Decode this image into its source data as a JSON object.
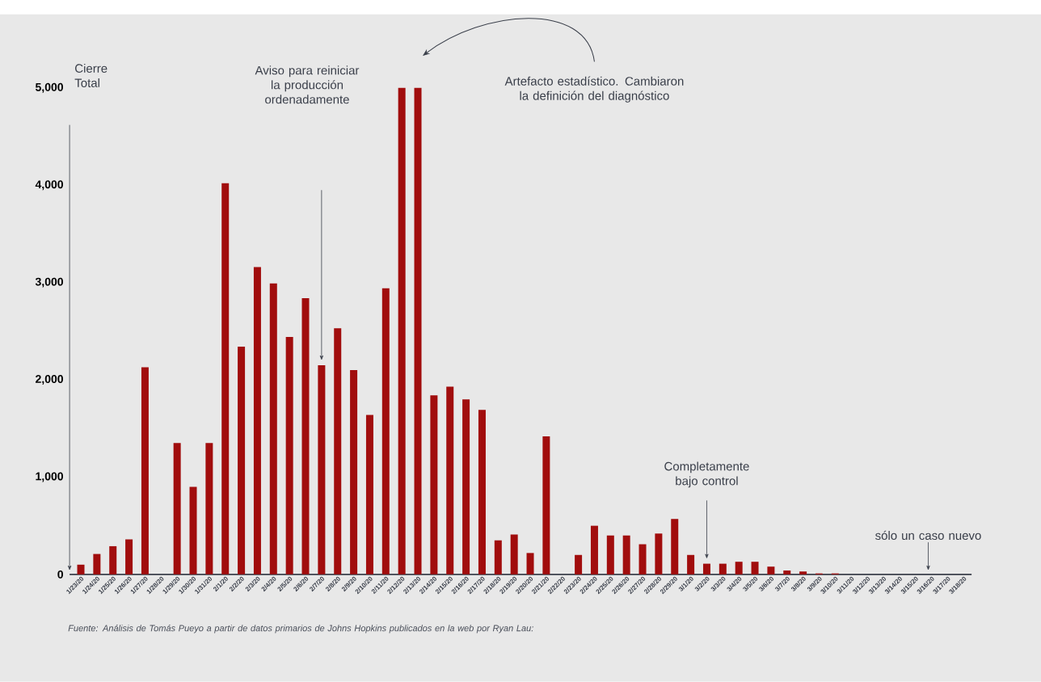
{
  "chart_data": {
    "type": "bar",
    "color": "#a10d0d",
    "categories": [
      "1/23/20",
      "1/24/20",
      "1/25/20",
      "1/26/20",
      "1/27/20",
      "1/28/20",
      "1/29/20",
      "1/30/20",
      "1/31/20",
      "2/1/20",
      "2/2/20",
      "2/3/20",
      "2/4/20",
      "2/5/20",
      "2/6/20",
      "2/7/20",
      "2/8/20",
      "2/9/20",
      "2/10/20",
      "2/11/20",
      "2/12/20",
      "2/13/20",
      "2/14/20",
      "2/15/20",
      "2/16/20",
      "2/17/20",
      "2/18/20",
      "2/19/20",
      "2/20/20",
      "2/21/20",
      "2/22/20",
      "2/23/20",
      "2/24/20",
      "2/25/20",
      "2/26/20",
      "2/27/20",
      "2/28/20",
      "2/29/20",
      "3/1/20",
      "3/2/20",
      "3/3/20",
      "3/4/20",
      "3/5/20",
      "3/6/20",
      "3/7/20",
      "3/8/20",
      "3/9/20",
      "3/10/20",
      "3/11/20",
      "3/12/20",
      "3/13/20",
      "3/14/20",
      "3/15/20",
      "3/16/20",
      "3/17/20",
      "3/18/20"
    ],
    "values": [
      100,
      210,
      290,
      360,
      2130,
      0,
      1350,
      900,
      1350,
      4020,
      2340,
      3160,
      2990,
      2440,
      2840,
      2150,
      2530,
      2100,
      1640,
      2940,
      5000,
      5000,
      1840,
      1930,
      1800,
      1690,
      350,
      410,
      220,
      1420,
      0,
      200,
      500,
      400,
      400,
      310,
      420,
      570,
      200,
      110,
      110,
      130,
      130,
      80,
      40,
      30,
      10,
      10,
      0,
      0,
      0,
      0,
      0,
      0,
      0,
      0
    ],
    "ylim": [
      0,
      5000
    ],
    "yticks": [
      0,
      {
        "value": 1000,
        "label": "1,000"
      },
      {
        "value": 2000,
        "label": "2,000"
      },
      {
        "value": 3000,
        "label": "3,000"
      },
      {
        "value": 4000,
        "label": "4,000"
      },
      {
        "value": 5000,
        "label": "5,000"
      }
    ],
    "annotations": [
      "Cierre Total",
      "Aviso para reiniciar la producción ordenadamente",
      "Artefacto estadístico. Cambiaron la definición del diagnóstico",
      "Completamente bajo control",
      "sólo un caso nuevo",
      "Fuente: Análisis de Tomás Pueyo a partir de datos primarios de Johns Hopkins publicados en la web por Ryan Lau:"
    ]
  }
}
